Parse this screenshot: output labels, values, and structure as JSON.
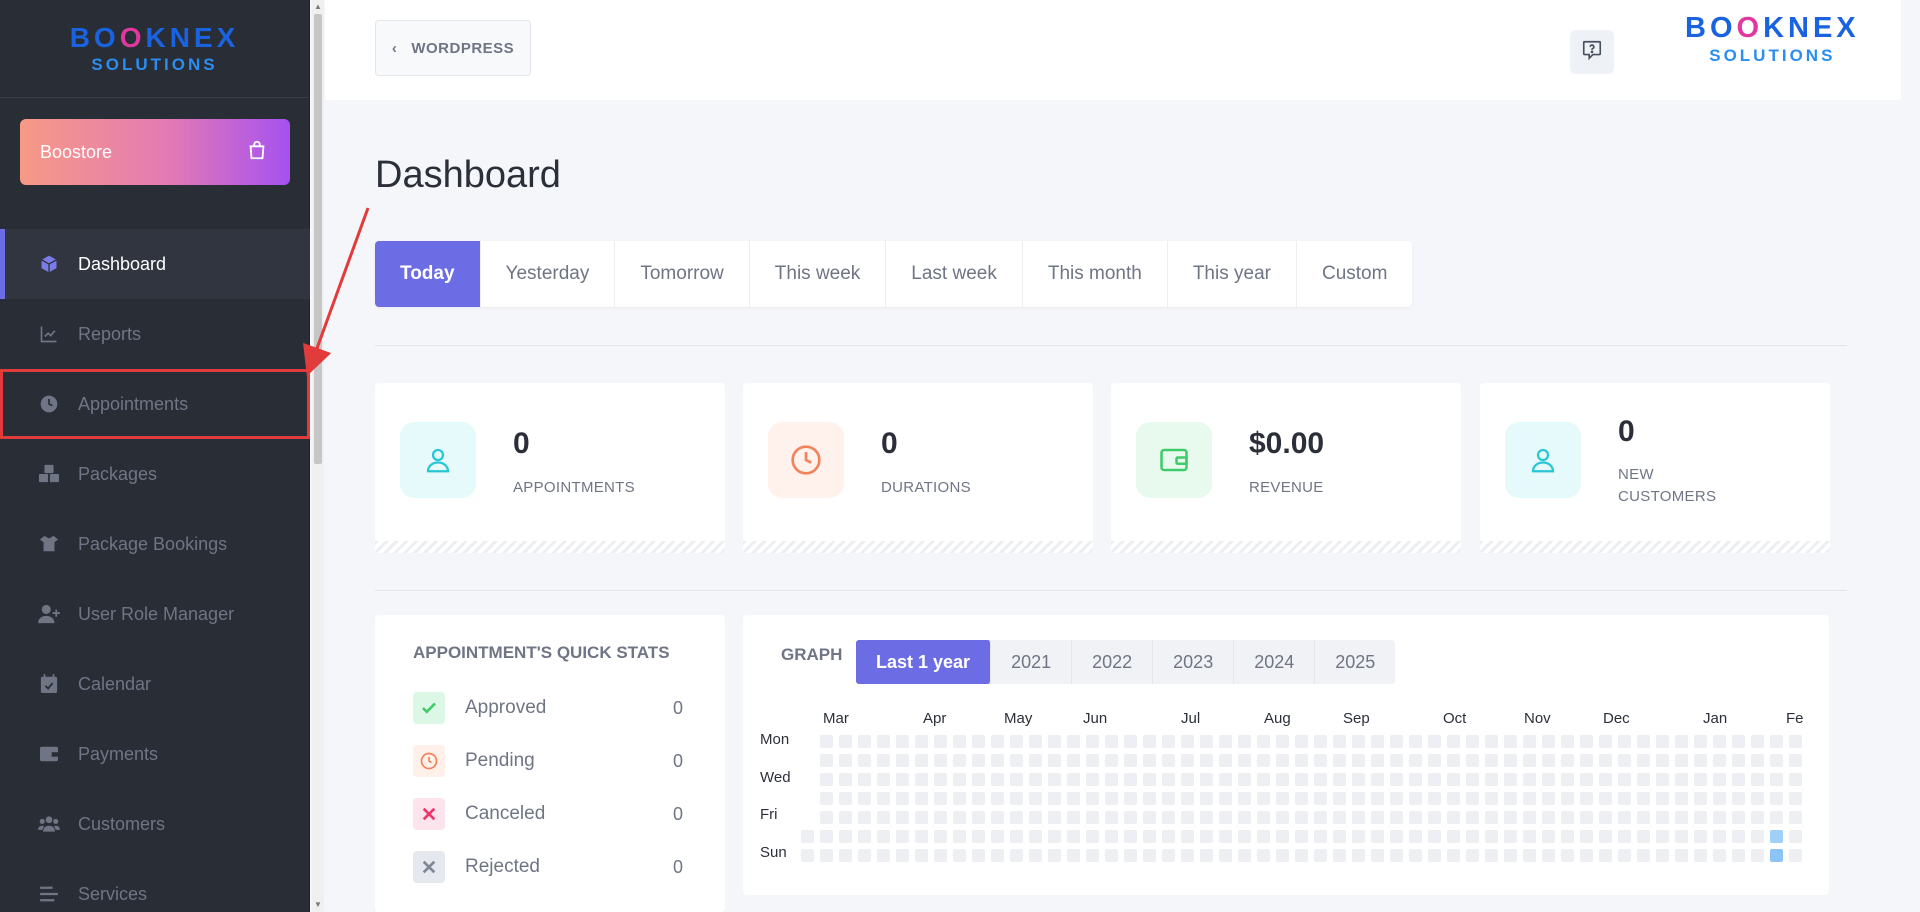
{
  "sidebar": {
    "logo": {
      "main_left": "BO",
      "main_o": "O",
      "main_right": "KNEX",
      "sub": "SOLUTIONS"
    },
    "boostore": {
      "label": "Boostore",
      "icon": "shopping-bag-icon"
    },
    "items": [
      {
        "label": "Dashboard",
        "icon": "cube-icon",
        "active": true
      },
      {
        "label": "Reports",
        "icon": "chart-line-icon"
      },
      {
        "label": "Appointments",
        "icon": "clock-icon",
        "highlighted": true
      },
      {
        "label": "Packages",
        "icon": "boxes-icon"
      },
      {
        "label": "Package Bookings",
        "icon": "box-open-icon"
      },
      {
        "label": "User Role Manager",
        "icon": "user-plus-icon"
      },
      {
        "label": "Calendar",
        "icon": "calendar-check-icon"
      },
      {
        "label": "Payments",
        "icon": "wallet-icon"
      },
      {
        "label": "Customers",
        "icon": "users-icon"
      },
      {
        "label": "Services",
        "icon": "list-icon"
      }
    ]
  },
  "header": {
    "back_label": "WORDPRESS",
    "logo": {
      "main_left": "BO",
      "main_o": "O",
      "main_right": "KNEX",
      "sub": "SOLUTIONS"
    }
  },
  "page": {
    "title": "Dashboard",
    "tabs": [
      "Today",
      "Yesterday",
      "Tomorrow",
      "This week",
      "Last week",
      "This month",
      "This year",
      "Custom"
    ],
    "active_tab": "Today"
  },
  "stats": [
    {
      "value": "0",
      "label": "APPOINTMENTS",
      "icon": "user-icon",
      "color": "#29c6d6",
      "bg": "#e6fafc"
    },
    {
      "value": "0",
      "label": "DURATIONS",
      "icon": "clock-icon",
      "color": "#f2835b",
      "bg": "#fff1ec"
    },
    {
      "value": "$0.00",
      "label": "REVENUE",
      "icon": "wallet-icon",
      "color": "#3ecb6a",
      "bg": "#e8f9ee"
    },
    {
      "value": "0",
      "label": "NEW CUSTOMERS",
      "icon": "user-icon",
      "color": "#29c6d6",
      "bg": "#e6fafc"
    }
  ],
  "quick_stats": {
    "title": "APPOINTMENT'S QUICK STATS",
    "rows": [
      {
        "label": "Approved",
        "count": "0",
        "icon": "check-icon",
        "color": "#3ecb6a",
        "bg": "#dcf7e5"
      },
      {
        "label": "Pending",
        "count": "0",
        "icon": "clock-icon",
        "color": "#f2835b",
        "bg": "#fff0ea"
      },
      {
        "label": "Canceled",
        "count": "0",
        "icon": "x-icon",
        "color": "#f0346a",
        "bg": "#fde4ec"
      },
      {
        "label": "Rejected",
        "count": "0",
        "icon": "x-icon",
        "color": "#7d8796",
        "bg": "#e5e8ee"
      }
    ]
  },
  "graph": {
    "title": "GRAPH",
    "tabs": [
      "Last 1 year",
      "2021",
      "2022",
      "2023",
      "2024",
      "2025"
    ],
    "active_tab": "Last 1 year",
    "months": [
      "Mar",
      "Apr",
      "May",
      "Jun",
      "Jul",
      "Aug",
      "Sep",
      "Oct",
      "Nov",
      "Dec",
      "Jan",
      "Fe"
    ],
    "day_labels": [
      "Mon",
      "Wed",
      "Fri",
      "Sun"
    ]
  },
  "colors": {
    "accent": "#6c6ce4",
    "sidebar": "#292d36",
    "annotation": "#e23b3b",
    "heat_active": "#9fd0f7"
  }
}
